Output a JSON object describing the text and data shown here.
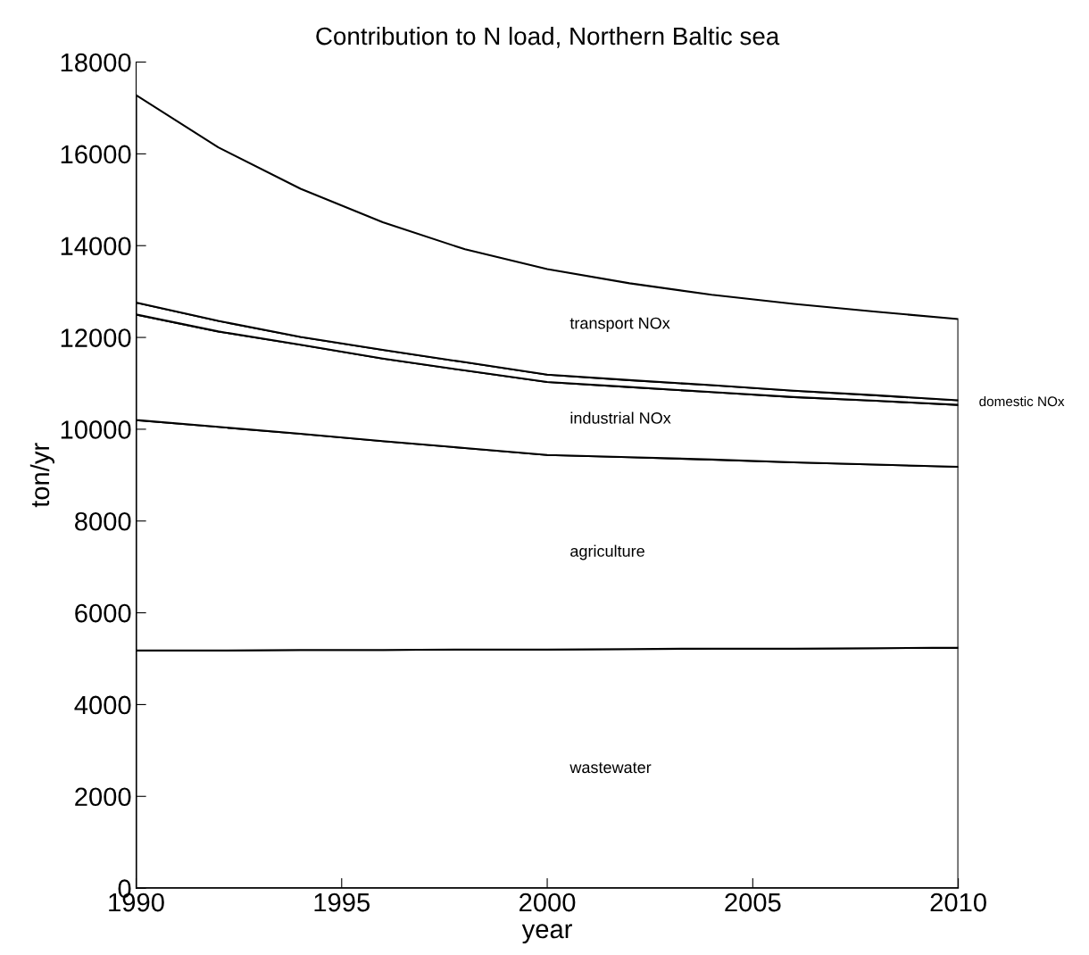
{
  "chart_data": {
    "type": "area",
    "stacked": true,
    "title": "Contribution to N load, Northern Baltic sea",
    "xlabel": "year",
    "ylabel": "ton/yr",
    "x": [
      1990,
      1992,
      1994,
      1996,
      1998,
      2000,
      2002,
      2004,
      2006,
      2008,
      2010
    ],
    "series": [
      {
        "name": "wastewater",
        "color": "#ffffff",
        "values": [
          5180,
          5180,
          5190,
          5190,
          5200,
          5200,
          5210,
          5220,
          5220,
          5230,
          5240
        ]
      },
      {
        "name": "agriculture",
        "color": "#ffffff",
        "values": [
          5020,
          4870,
          4710,
          4550,
          4390,
          4240,
          4180,
          4120,
          4060,
          4000,
          3940
        ]
      },
      {
        "name": "industrial NOx",
        "color": "#ffffff",
        "values": [
          2300,
          2080,
          1940,
          1800,
          1690,
          1590,
          1530,
          1470,
          1420,
          1390,
          1350
        ]
      },
      {
        "name": "domestic NOx",
        "color": "#ffffff",
        "values": [
          260,
          230,
          170,
          190,
          180,
          160,
          150,
          150,
          140,
          120,
          100
        ]
      },
      {
        "name": "transport NOx",
        "color": "#ffffff",
        "values": [
          4520,
          3780,
          3230,
          2780,
          2460,
          2300,
          2110,
          1970,
          1890,
          1820,
          1770
        ]
      }
    ],
    "xlim": [
      1990,
      2010
    ],
    "xticks": [
      1990,
      1995,
      2000,
      2005,
      2010
    ],
    "ylim": [
      0,
      18000
    ],
    "yticks": [
      0,
      2000,
      4000,
      6000,
      8000,
      10000,
      12000,
      14000,
      16000,
      18000
    ],
    "grid": false,
    "legend": false
  }
}
